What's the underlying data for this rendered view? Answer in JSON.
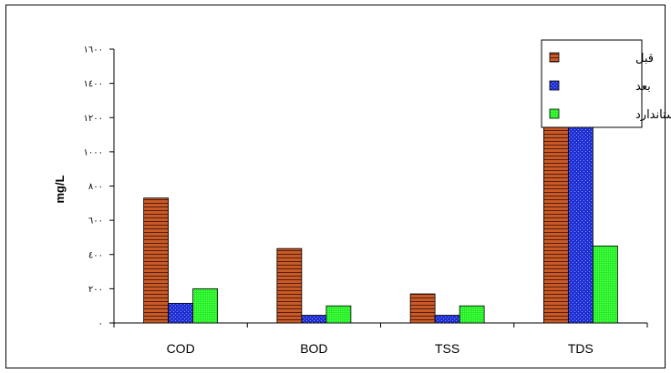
{
  "chart_data": {
    "type": "bar",
    "categories": [
      "COD",
      "BOD",
      "TSS",
      "TDS"
    ],
    "series": [
      {
        "name": "قبل",
        "values": [
          730,
          435,
          170,
          1460
        ],
        "color": "#c85a28"
      },
      {
        "name": "بعد",
        "values": [
          115,
          45,
          45,
          1315
        ],
        "color": "#1e2fd2"
      },
      {
        "name": "استاندارد",
        "values": [
          200,
          100,
          100,
          450
        ],
        "color": "#22ee22"
      }
    ],
    "ylabel": "mg/L",
    "ylim": [
      0,
      1600
    ],
    "yticks": [
      0,
      200,
      400,
      600,
      800,
      1000,
      1200,
      1400,
      1600
    ],
    "ytick_labels": [
      "٠",
      "٢٠٠",
      "٤٠٠",
      "٦٠٠",
      "٨٠٠",
      "١٠٠٠",
      "١٢٠٠",
      "١٤٠٠",
      "١٦٠٠"
    ],
    "grid": false,
    "legend_position": "top-right"
  }
}
